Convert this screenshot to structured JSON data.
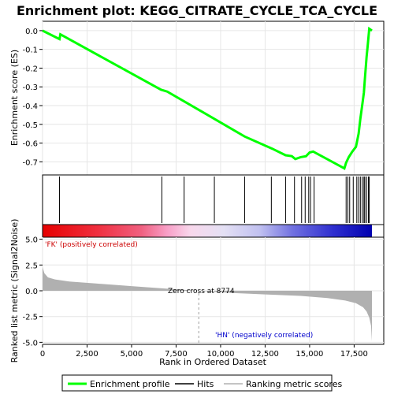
{
  "chart_data": [
    {
      "type": "line",
      "title": "Enrichment plot: KEGG_CITRATE_CYCLE_TCA_CYCLE",
      "ylabel": "Enrichment score (ES)",
      "ylim": [
        -0.77,
        0.05
      ],
      "yticks": [
        0.0,
        -0.1,
        -0.2,
        -0.3,
        -0.4,
        -0.5,
        -0.6,
        -0.7
      ],
      "ytick_labels": [
        "0.0",
        "-0.1",
        "-0.2",
        "-0.3",
        "-0.4",
        "-0.5",
        "-0.6",
        "-0.7"
      ],
      "xlim": [
        0,
        18500
      ],
      "series": [
        {
          "name": "Enrichment profile",
          "color": "#00ff00",
          "x": [
            0,
            950,
            1000,
            6650,
            7000,
            10000,
            11350,
            12900,
            13650,
            14000,
            14200,
            14500,
            14800,
            15000,
            15200,
            16950,
            17050,
            17200,
            17400,
            17600,
            17750,
            17850,
            17950,
            18050,
            18100,
            18150,
            18200,
            18250,
            18300,
            18350,
            18500
          ],
          "y": [
            0.0,
            -0.045,
            -0.02,
            -0.315,
            -0.325,
            -0.49,
            -0.565,
            -0.63,
            -0.665,
            -0.67,
            -0.685,
            -0.675,
            -0.67,
            -0.65,
            -0.645,
            -0.735,
            -0.705,
            -0.675,
            -0.645,
            -0.62,
            -0.55,
            -0.47,
            -0.4,
            -0.33,
            -0.26,
            -0.2,
            -0.14,
            -0.09,
            -0.04,
            0.01,
            0.0
          ]
        }
      ]
    },
    {
      "type": "hits",
      "legend_label": "Hits",
      "x": [
        950,
        6700,
        7950,
        9650,
        11350,
        12850,
        13650,
        14150,
        14550,
        14750,
        14950,
        15050,
        15250,
        17050,
        17150,
        17250,
        17450,
        17650,
        17750,
        17850,
        17950,
        18050,
        18100,
        18200,
        18300,
        18350
      ]
    },
    {
      "type": "heatmap",
      "description_colors": [
        "#ff0000",
        "#ffffff",
        "#0000ff"
      ],
      "left_label": "'FK' (positively correlated)",
      "right_label": "'HN' (negatively correlated)"
    },
    {
      "type": "area",
      "ylabel": "Ranked list metric (Signal2Noise)",
      "xlabel": "Rank in Ordered Dataset",
      "ylim": [
        -5.2,
        5.2
      ],
      "yticks": [
        5.0,
        2.5,
        0.0,
        -2.5,
        -5.0
      ],
      "ytick_labels": [
        "5.0",
        "2.5",
        "0.0",
        "-2.5",
        "-5.0"
      ],
      "xticks": [
        0,
        2500,
        5000,
        7500,
        10000,
        12500,
        15000,
        17500
      ],
      "xtick_labels": [
        "0",
        "2,500",
        "5,000",
        "7,500",
        "10,000",
        "12,500",
        "15,000",
        "17,500"
      ],
      "zero_cross": 8774,
      "zero_cross_label": "Zero cross at 8774",
      "x": [
        0,
        100,
        300,
        700,
        1500,
        3000,
        5000,
        7000,
        8774,
        10500,
        12500,
        14500,
        16000,
        17000,
        17600,
        18000,
        18200,
        18350,
        18450,
        18500
      ],
      "y": [
        2.3,
        1.7,
        1.3,
        1.1,
        0.9,
        0.7,
        0.45,
        0.2,
        0.0,
        -0.2,
        -0.35,
        -0.5,
        -0.7,
        -0.95,
        -1.2,
        -1.6,
        -2.0,
        -2.6,
        -3.4,
        -4.9
      ],
      "legend_label": "Ranking metric scores",
      "color": "#b0b0b0"
    }
  ],
  "legend": {
    "items": [
      {
        "label": "Enrichment profile",
        "color": "#00ff00"
      },
      {
        "label": "Hits",
        "color": "#000000"
      },
      {
        "label": "Ranking metric scores",
        "color": "#b0b0b0"
      }
    ]
  }
}
